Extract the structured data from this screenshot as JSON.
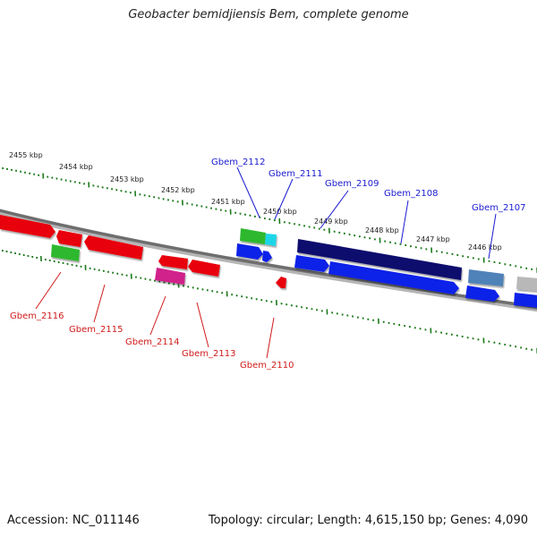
{
  "title": "Geobacter bemidjiensis Bem, complete genome",
  "footer": {
    "accession": "Accession: NC_011146",
    "topology": "Topology: circular; Length: 4,615,150 bp; Genes: 4,090"
  },
  "kbp_labels": [
    "2455 kbp",
    "2454 kbp",
    "2453 kbp",
    "2452 kbp",
    "2451 kbp",
    "2450 kbp",
    "2449 kbp",
    "2448 kbp",
    "2447 kbp",
    "2446 kbp"
  ],
  "top_genes": [
    "Gbem_2112",
    "Gbem_2111",
    "Gbem_2109",
    "Gbem_2108",
    "Gbem_2107"
  ],
  "bottom_genes": [
    "Gbem_2116",
    "Gbem_2115",
    "Gbem_2114",
    "Gbem_2113",
    "Gbem_2110"
  ],
  "colors": {
    "red": "#e8000b",
    "green": "#2fb82f",
    "cyan": "#1ad6e8",
    "navy": "#0c0c6e",
    "blue": "#1020e8",
    "steel": "#4f82b8",
    "magenta": "#d0208a",
    "silver": "#b8b8b8",
    "tick": "#1a7a1a",
    "backbone": "#808080",
    "top_label": "#1a1ad0",
    "bottom_label": "#d01a1a"
  }
}
